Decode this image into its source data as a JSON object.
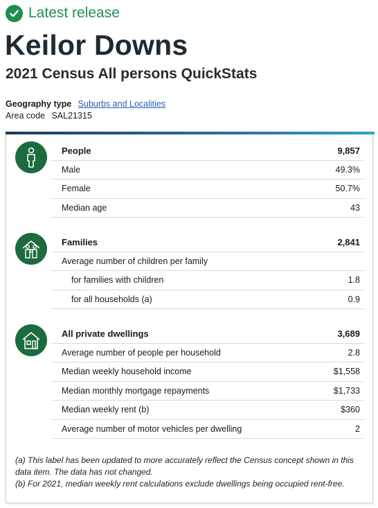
{
  "release": {
    "label": "Latest release",
    "icon": "check-circle-icon",
    "color": "#1e8e4f"
  },
  "title": "Keilor Downs",
  "subtitle": "2021 Census All persons QuickStats",
  "geography": {
    "type_label": "Geography type",
    "type_value": "Suburbs and Localities",
    "area_label": "Area code",
    "area_value": "SAL21315"
  },
  "sections": {
    "people": {
      "icon": "person-icon",
      "header": {
        "label": "People",
        "value": "9,857"
      },
      "rows": [
        {
          "label": "Male",
          "value": "49.3%"
        },
        {
          "label": "Female",
          "value": "50.7%"
        },
        {
          "label": "Median age",
          "value": "43"
        }
      ]
    },
    "families": {
      "icon": "family-icon",
      "header": {
        "label": "Families",
        "value": "2,841"
      },
      "rows": [
        {
          "label": "Average number of children per family",
          "value": ""
        },
        {
          "label": "for families with children",
          "value": "1.8"
        },
        {
          "label": "for all households (a)",
          "value": "0.9"
        }
      ]
    },
    "dwellings": {
      "icon": "house-icon",
      "header": {
        "label": "All private dwellings",
        "value": "3,689"
      },
      "rows": [
        {
          "label": "Average number of people per household",
          "value": "2.8"
        },
        {
          "label": "Median weekly household income",
          "value": "$1,558"
        },
        {
          "label": "Median monthly mortgage repayments",
          "value": "$1,733"
        },
        {
          "label": "Median weekly rent (b)",
          "value": "$360"
        },
        {
          "label": "Average number of motor vehicles per dwelling",
          "value": "2"
        }
      ]
    }
  },
  "notes": {
    "a": "(a) This label has been updated to more accurately reflect the Census concept shown in this data item. The data has not changed.",
    "b": "(b) For 2021, median weekly rent calculations exclude dwellings being occupied rent-free."
  },
  "colors": {
    "icon_bg": "#1c6b3f",
    "link": "#2a5db0",
    "title": "#1f2a33"
  }
}
